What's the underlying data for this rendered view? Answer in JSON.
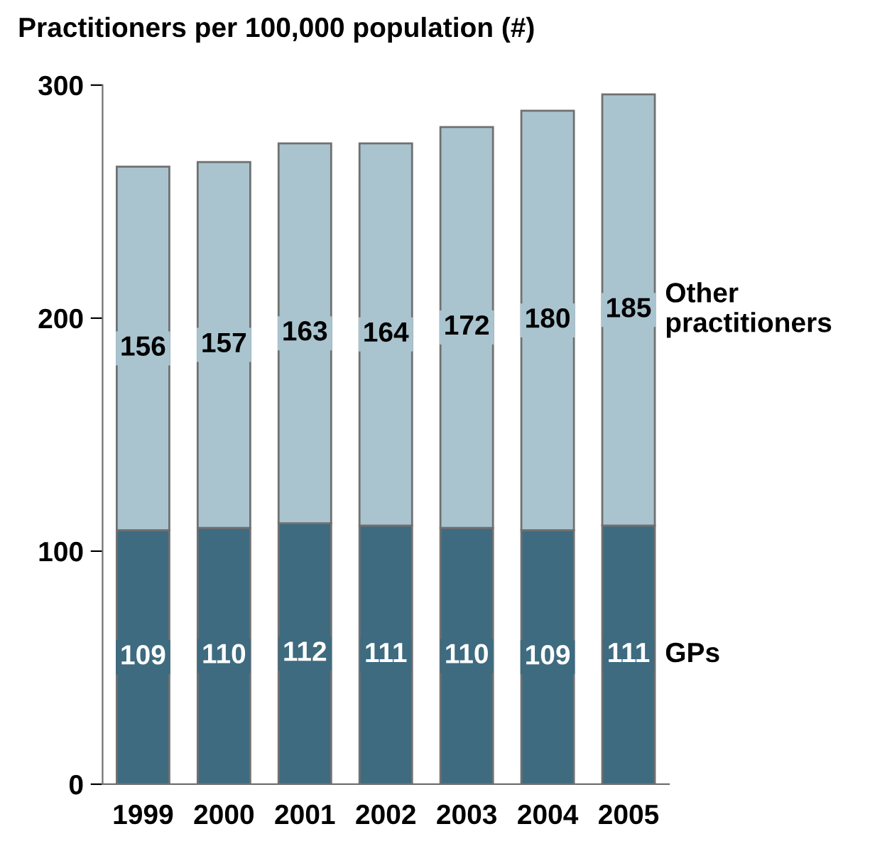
{
  "chart_data": {
    "type": "bar",
    "title": "Practitioners per 100,000 population (#)",
    "stacked": true,
    "categories": [
      "1999",
      "2000",
      "2001",
      "2002",
      "2003",
      "2004",
      "2005"
    ],
    "series": [
      {
        "name": "GPs",
        "color": "#3e6b80",
        "values": [
          109,
          110,
          112,
          111,
          110,
          109,
          111
        ]
      },
      {
        "name": "Other practitioners",
        "color": "#a9c4cf",
        "values": [
          156,
          157,
          163,
          164,
          172,
          180,
          185
        ]
      }
    ],
    "ylim": [
      0,
      300
    ],
    "yticks": [
      0,
      100,
      200,
      300
    ],
    "data_labels": true,
    "grid": false,
    "legend": "right"
  }
}
